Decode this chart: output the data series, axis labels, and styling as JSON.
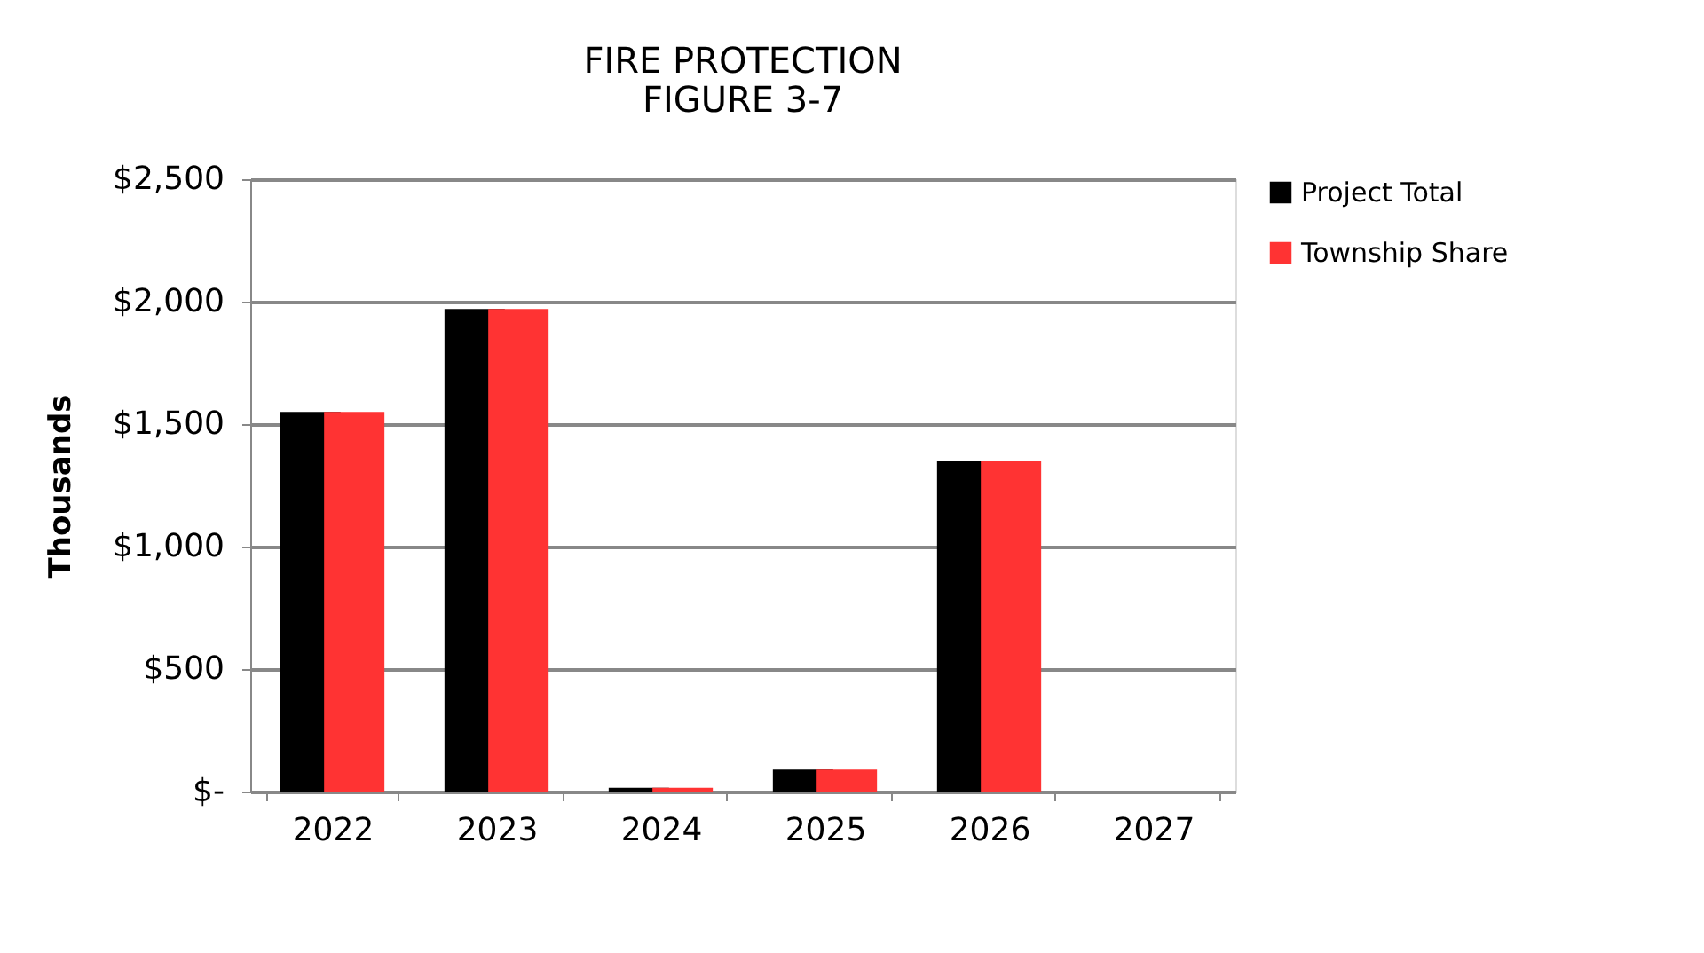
{
  "chart_data": {
    "type": "bar",
    "title": [
      "FIRE PROTECTION",
      "FIGURE 3-7"
    ],
    "ylabel": "Thousands",
    "categories": [
      "2022",
      "2023",
      "2024",
      "2025",
      "2026",
      "2027"
    ],
    "series": [
      {
        "name": "Project Total",
        "color": "#000000",
        "values": [
          1550,
          1970,
          15,
          90,
          1350,
          0
        ]
      },
      {
        "name": "Township Share",
        "color": "#ff3333",
        "values": [
          1550,
          1970,
          15,
          90,
          1350,
          0
        ]
      }
    ],
    "ylim": [
      0,
      2500
    ],
    "yticks": [
      {
        "value": 0,
        "label": "$-"
      },
      {
        "value": 500,
        "label": "$500"
      },
      {
        "value": 1000,
        "label": "$1,000"
      },
      {
        "value": 1500,
        "label": "$1,500"
      },
      {
        "value": 2000,
        "label": "$2,000"
      },
      {
        "value": 2500,
        "label": "$2,500"
      }
    ],
    "grid": "y",
    "legend": "right"
  }
}
